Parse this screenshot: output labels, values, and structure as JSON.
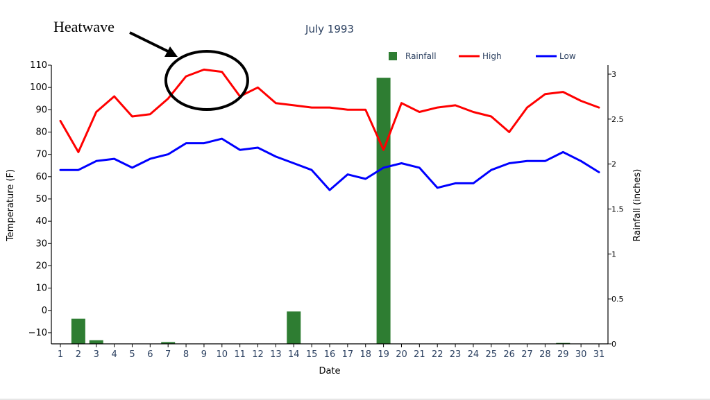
{
  "chart_data": {
    "type": "bar+line",
    "title": "July 1993",
    "xlabel": "Date",
    "ylabel_left": "Temperature (F)",
    "ylabel_right": "Rainfall (inches)",
    "x": [
      1,
      2,
      3,
      4,
      5,
      6,
      7,
      8,
      9,
      10,
      11,
      12,
      13,
      14,
      15,
      16,
      17,
      18,
      19,
      20,
      21,
      22,
      23,
      24,
      25,
      26,
      27,
      28,
      29,
      30,
      31
    ],
    "ylim_left": [
      -15,
      110
    ],
    "yticks_left": [
      -10,
      0,
      10,
      20,
      30,
      40,
      50,
      60,
      70,
      80,
      90,
      100,
      110
    ],
    "ylim_right": [
      0,
      3.1
    ],
    "yticks_right": [
      0,
      0.5,
      1,
      1.5,
      2,
      2.5,
      3
    ],
    "ytick_labels_right": [
      "0",
      "0.5",
      "1",
      "1.5",
      "2",
      "2.5",
      "3"
    ],
    "legend_placement": "top-right",
    "series": [
      {
        "name": "Rainfall",
        "type": "bar",
        "axis": "right",
        "color": "#2e7d32",
        "values": [
          0,
          0.28,
          0.04,
          0,
          0,
          0,
          0.02,
          0,
          0,
          0,
          0,
          0,
          0,
          0.36,
          0,
          0,
          0,
          0,
          2.96,
          0,
          0,
          0,
          0,
          0,
          0,
          0,
          0,
          0,
          0.01,
          0,
          0
        ]
      },
      {
        "name": "High",
        "type": "line",
        "axis": "left",
        "color": "#ff0000",
        "values": [
          85,
          71,
          89,
          96,
          87,
          88,
          95,
          105,
          108,
          107,
          96,
          100,
          93,
          92,
          91,
          91,
          90,
          90,
          72,
          93,
          89,
          91,
          92,
          89,
          87,
          80,
          91,
          97,
          98,
          94,
          91
        ]
      },
      {
        "name": "Low",
        "type": "line",
        "axis": "left",
        "color": "#0000ff",
        "values": [
          63,
          63,
          67,
          68,
          64,
          68,
          70,
          75,
          75,
          77,
          72,
          73,
          69,
          66,
          63,
          54,
          61,
          59,
          64,
          66,
          64,
          55,
          57,
          57,
          63,
          66,
          67,
          67,
          71,
          67,
          62
        ]
      }
    ],
    "annotations": [
      {
        "text": "Heatwave",
        "target_x": 9,
        "target_y": 108
      }
    ]
  }
}
